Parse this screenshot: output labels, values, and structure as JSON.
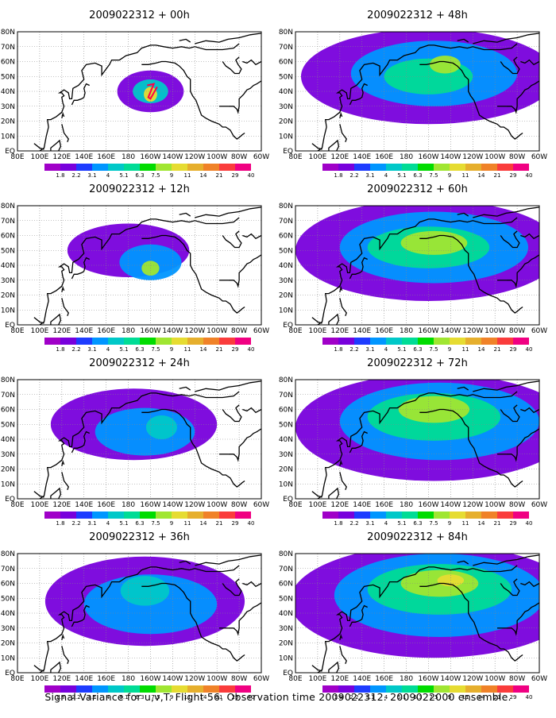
{
  "caption": "Signal Variance for u,v,T. Flight 56. Observation time 2009022312. 2009022000 ensemble.",
  "colorbar": {
    "labels": [
      "1.8",
      "2.2",
      "3.1",
      "4",
      "5.1",
      "6.3",
      "7.5",
      "9",
      "11",
      "14",
      "21",
      "29",
      "40"
    ],
    "colors": [
      "#a000c8",
      "#7800dc",
      "#1e3cff",
      "#0096ff",
      "#00c8c8",
      "#00dc96",
      "#00dc00",
      "#a0e632",
      "#e6dc32",
      "#e6af2d",
      "#f08228",
      "#fa3c3c",
      "#f00082"
    ]
  },
  "chart_data": [
    {
      "type": "heatmap",
      "title": "2009022312 + 00h",
      "x_ticks": [
        "80E",
        "100E",
        "120E",
        "140E",
        "160E",
        "180",
        "160W",
        "140W",
        "120W",
        "100W",
        "80W",
        "60W"
      ],
      "y_ticks": [
        "EQ",
        "10N",
        "20N",
        "30N",
        "40N",
        "50N",
        "60N",
        "70N",
        "80N"
      ],
      "blobs": [
        {
          "lon": 200,
          "lat": 40,
          "rlon": 30,
          "rlat": 14,
          "level": 1
        },
        {
          "lon": 200,
          "lat": 40,
          "rlon": 16,
          "rlat": 8,
          "level": 4
        },
        {
          "lon": 200,
          "lat": 38,
          "rlon": 6,
          "rlat": 5,
          "level": 8
        }
      ]
    },
    {
      "type": "heatmap",
      "title": "2009022312 + 12h",
      "x_ticks": [
        "80E",
        "100E",
        "120E",
        "140E",
        "160E",
        "180",
        "160W",
        "140W",
        "120W",
        "100W",
        "80W",
        "60W"
      ],
      "y_ticks": [
        "EQ",
        "10N",
        "20N",
        "30N",
        "40N",
        "50N",
        "60N",
        "70N",
        "80N"
      ],
      "blobs": [
        {
          "lon": 180,
          "lat": 50,
          "rlon": 55,
          "rlat": 18,
          "level": 1
        },
        {
          "lon": 200,
          "lat": 42,
          "rlon": 28,
          "rlat": 12,
          "level": 3
        },
        {
          "lon": 200,
          "lat": 38,
          "rlon": 8,
          "rlat": 5,
          "level": 7
        }
      ]
    },
    {
      "type": "heatmap",
      "title": "2009022312 + 24h",
      "x_ticks": [
        "80E",
        "100E",
        "120E",
        "140E",
        "160E",
        "180",
        "160W",
        "140W",
        "120W",
        "100W",
        "80W",
        "60W"
      ],
      "y_ticks": [
        "EQ",
        "10N",
        "20N",
        "30N",
        "40N",
        "50N",
        "60N",
        "70N",
        "80N"
      ],
      "blobs": [
        {
          "lon": 185,
          "lat": 50,
          "rlon": 75,
          "rlat": 24,
          "level": 1
        },
        {
          "lon": 195,
          "lat": 45,
          "rlon": 45,
          "rlat": 16,
          "level": 3
        },
        {
          "lon": 210,
          "lat": 48,
          "rlon": 14,
          "rlat": 8,
          "level": 4
        }
      ]
    },
    {
      "type": "heatmap",
      "title": "2009022312 + 36h",
      "x_ticks": [
        "80E",
        "100E",
        "120E",
        "140E",
        "160E",
        "180",
        "160W",
        "140W",
        "120W",
        "100W",
        "80W",
        "60W"
      ],
      "y_ticks": [
        "EQ",
        "10N",
        "20N",
        "30N",
        "40N",
        "50N",
        "60N",
        "70N",
        "80N"
      ],
      "blobs": [
        {
          "lon": 195,
          "lat": 48,
          "rlon": 90,
          "rlat": 30,
          "level": 1
        },
        {
          "lon": 200,
          "lat": 46,
          "rlon": 60,
          "rlat": 20,
          "level": 3
        },
        {
          "lon": 195,
          "lat": 55,
          "rlon": 22,
          "rlat": 10,
          "level": 4
        }
      ]
    },
    {
      "type": "heatmap",
      "title": "2009022312 + 48h",
      "x_ticks": [
        "80E",
        "100E",
        "120E",
        "140E",
        "160E",
        "180",
        "160W",
        "140W",
        "120W",
        "100W",
        "80W",
        "60W"
      ],
      "y_ticks": [
        "EQ",
        "10N",
        "20N",
        "30N",
        "40N",
        "50N",
        "60N",
        "70N",
        "80N"
      ],
      "blobs": [
        {
          "lon": 200,
          "lat": 50,
          "rlon": 115,
          "rlat": 32,
          "level": 1
        },
        {
          "lon": 205,
          "lat": 52,
          "rlon": 75,
          "rlat": 22,
          "level": 3
        },
        {
          "lon": 200,
          "lat": 50,
          "rlon": 40,
          "rlat": 12,
          "level": 5
        },
        {
          "lon": 215,
          "lat": 58,
          "rlon": 14,
          "rlat": 6,
          "level": 7
        }
      ]
    },
    {
      "type": "heatmap",
      "title": "2009022312 + 60h",
      "x_ticks": [
        "80E",
        "100E",
        "120E",
        "140E",
        "160E",
        "180",
        "160W",
        "140W",
        "120W",
        "100W",
        "80W",
        "60W"
      ],
      "y_ticks": [
        "EQ",
        "10N",
        "20N",
        "30N",
        "40N",
        "50N",
        "60N",
        "70N",
        "80N"
      ],
      "blobs": [
        {
          "lon": 200,
          "lat": 50,
          "rlon": 120,
          "rlat": 34,
          "level": 1
        },
        {
          "lon": 205,
          "lat": 52,
          "rlon": 85,
          "rlat": 24,
          "level": 3
        },
        {
          "lon": 200,
          "lat": 52,
          "rlon": 55,
          "rlat": 14,
          "level": 5
        },
        {
          "lon": 205,
          "lat": 55,
          "rlon": 30,
          "rlat": 8,
          "level": 7
        }
      ]
    },
    {
      "type": "heatmap",
      "title": "2009022312 + 72h",
      "x_ticks": [
        "80E",
        "100E",
        "120E",
        "140E",
        "160E",
        "180",
        "160W",
        "140W",
        "120W",
        "100W",
        "80W",
        "60W"
      ],
      "y_ticks": [
        "EQ",
        "10N",
        "20N",
        "30N",
        "40N",
        "50N",
        "60N",
        "70N",
        "80N"
      ],
      "blobs": [
        {
          "lon": 205,
          "lat": 48,
          "rlon": 125,
          "rlat": 36,
          "level": 1
        },
        {
          "lon": 210,
          "lat": 52,
          "rlon": 90,
          "rlat": 26,
          "level": 3
        },
        {
          "lon": 205,
          "lat": 55,
          "rlon": 60,
          "rlat": 16,
          "level": 5
        },
        {
          "lon": 205,
          "lat": 60,
          "rlon": 32,
          "rlat": 9,
          "level": 7
        }
      ]
    },
    {
      "type": "heatmap",
      "title": "2009022312 + 84h",
      "x_ticks": [
        "80E",
        "100E",
        "120E",
        "140E",
        "160E",
        "180",
        "160W",
        "140W",
        "120W",
        "100W",
        "80W",
        "60W"
      ],
      "y_ticks": [
        "EQ",
        "10N",
        "20N",
        "30N",
        "40N",
        "50N",
        "60N",
        "70N",
        "80N"
      ],
      "blobs": [
        {
          "lon": 205,
          "lat": 48,
          "rlon": 130,
          "rlat": 38,
          "level": 1
        },
        {
          "lon": 210,
          "lat": 52,
          "rlon": 95,
          "rlat": 28,
          "level": 3
        },
        {
          "lon": 210,
          "lat": 56,
          "rlon": 65,
          "rlat": 17,
          "level": 5
        },
        {
          "lon": 210,
          "lat": 60,
          "rlon": 35,
          "rlat": 9,
          "level": 7
        },
        {
          "lon": 220,
          "lat": 62,
          "rlon": 12,
          "rlat": 4,
          "level": 8
        }
      ]
    }
  ]
}
